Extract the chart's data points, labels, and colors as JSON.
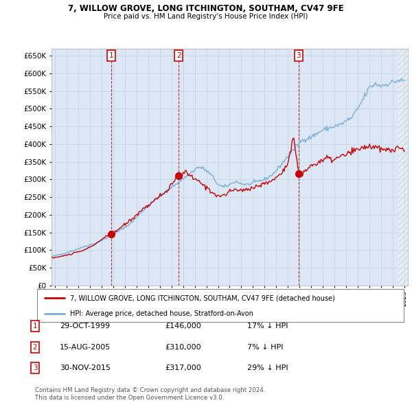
{
  "title1": "7, WILLOW GROVE, LONG ITCHINGTON, SOUTHAM, CV47 9FE",
  "title2": "Price paid vs. HM Land Registry's House Price Index (HPI)",
  "ylim": [
    0,
    670000
  ],
  "yticks": [
    0,
    50000,
    100000,
    150000,
    200000,
    250000,
    300000,
    350000,
    400000,
    450000,
    500000,
    550000,
    600000,
    650000
  ],
  "background_color": "#ffffff",
  "grid_color": "#c8d8e8",
  "plot_bg": "#dce8f5",
  "sale_color": "#cc0000",
  "hpi_color": "#7aaddd",
  "sale_dates": [
    1999.83,
    2005.62,
    2015.92
  ],
  "sale_prices": [
    146000,
    310000,
    317000
  ],
  "sale_labels": [
    "1",
    "2",
    "3"
  ],
  "legend_sale": "7, WILLOW GROVE, LONG ITCHINGTON, SOUTHAM, CV47 9FE (detached house)",
  "legend_hpi": "HPI: Average price, detached house, Stratford-on-Avon",
  "table_entries": [
    {
      "num": "1",
      "date": "29-OCT-1999",
      "price": "£146,000",
      "pct": "17% ↓ HPI"
    },
    {
      "num": "2",
      "date": "15-AUG-2005",
      "price": "£310,000",
      "pct": "7% ↓ HPI"
    },
    {
      "num": "3",
      "date": "30-NOV-2015",
      "price": "£317,000",
      "pct": "29% ↓ HPI"
    }
  ],
  "footnote1": "Contains HM Land Registry data © Crown copyright and database right 2024.",
  "footnote2": "This data is licensed under the Open Government Licence v3.0.",
  "xmin": 1994.7,
  "xmax": 2025.3
}
